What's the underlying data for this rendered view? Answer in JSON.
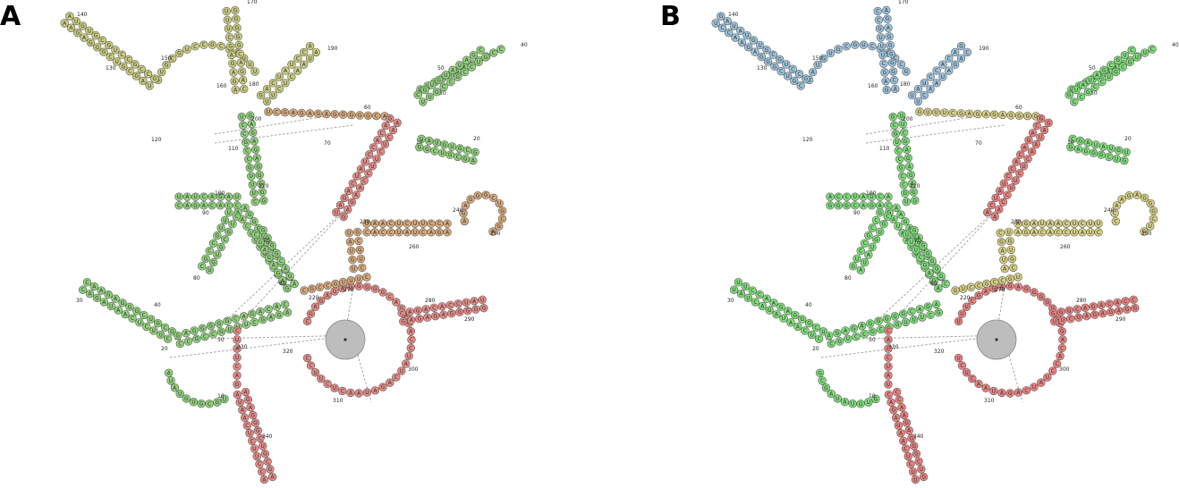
{
  "panels": [
    {
      "id": "A",
      "label": "A",
      "position_labels": [
        "10",
        "20",
        "30",
        "40",
        "50",
        "60",
        "70",
        "80",
        "90",
        "100",
        "110",
        "120",
        "130",
        "140",
        "150",
        "160",
        "170",
        "180",
        "190",
        "200",
        "210",
        "220",
        "230",
        "240",
        "250",
        "260",
        "270",
        "280",
        "290",
        "300",
        "310",
        "320",
        "330",
        "340",
        "10",
        "20",
        "30",
        "40",
        "50",
        "60",
        "70"
      ],
      "colors": {
        "green": "#8fd17a",
        "olive": "#c9cc7d",
        "tan": "#d8a97a",
        "red": "#e58a86"
      }
    },
    {
      "id": "B",
      "label": "B",
      "position_labels": [
        "10",
        "20",
        "30",
        "40",
        "50",
        "60",
        "70",
        "80",
        "90",
        "100",
        "110",
        "120",
        "130",
        "140",
        "150",
        "160",
        "170",
        "180",
        "190",
        "200",
        "210",
        "220",
        "230",
        "240",
        "250",
        "260",
        "270",
        "280",
        "290",
        "300",
        "310",
        "320",
        "330",
        "340",
        "10",
        "20",
        "30",
        "40",
        "50",
        "60",
        "70"
      ],
      "colors": {
        "green": "#7fdc7a",
        "blue": "#9cc3dc",
        "yellow": "#d6cf82",
        "red": "#e98280",
        "orange": "#e8a56e"
      }
    }
  ]
}
